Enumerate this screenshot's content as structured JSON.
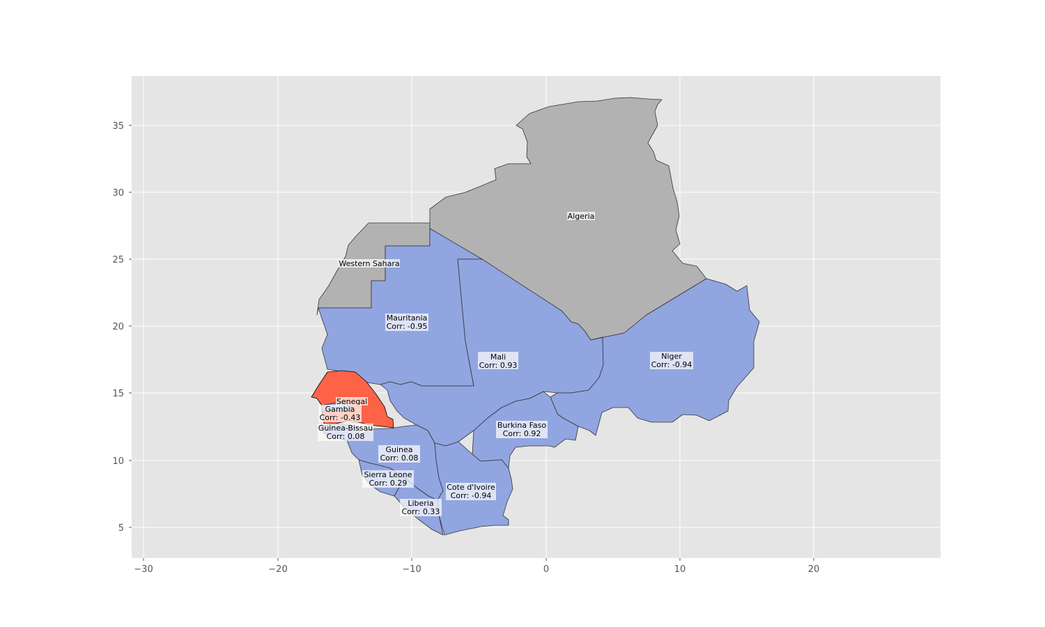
{
  "map": {
    "x_ticks": [
      "−30",
      "−20",
      "−10",
      "0",
      "10",
      "20"
    ],
    "y_ticks": [
      "35",
      "30",
      "25",
      "20",
      "15",
      "10",
      "5"
    ],
    "colors": {
      "background": "#e5e5e5",
      "grid": "#ffffff",
      "no_data": "#b2b2b2",
      "data": "#91a5e1",
      "selected": "#ff6347",
      "border": "#333333"
    },
    "countries": [
      {
        "name": "Algeria",
        "corr": ""
      },
      {
        "name": "Western Sahara",
        "corr": ""
      },
      {
        "name": "Mauritania",
        "corr": "Corr: -0.95"
      },
      {
        "name": "Mali",
        "corr": "Corr: 0.93"
      },
      {
        "name": "Niger",
        "corr": "Corr: -0.94"
      },
      {
        "name": "Senegal",
        "corr": ""
      },
      {
        "name": "Gambia",
        "corr": "Corr: -0.43"
      },
      {
        "name": "Guinea-Bissau",
        "corr": "Corr: 0.08"
      },
      {
        "name": "Burkina Faso",
        "corr": "Corr: 0.92"
      },
      {
        "name": "Guinea",
        "corr": "Corr: 0.08"
      },
      {
        "name": "Sierra Leone",
        "corr": "Corr: 0.29"
      },
      {
        "name": "Cote d'Ivoire",
        "corr": "Corr: -0.94"
      },
      {
        "name": "Liberia",
        "corr": "Corr: 0.33"
      }
    ]
  }
}
